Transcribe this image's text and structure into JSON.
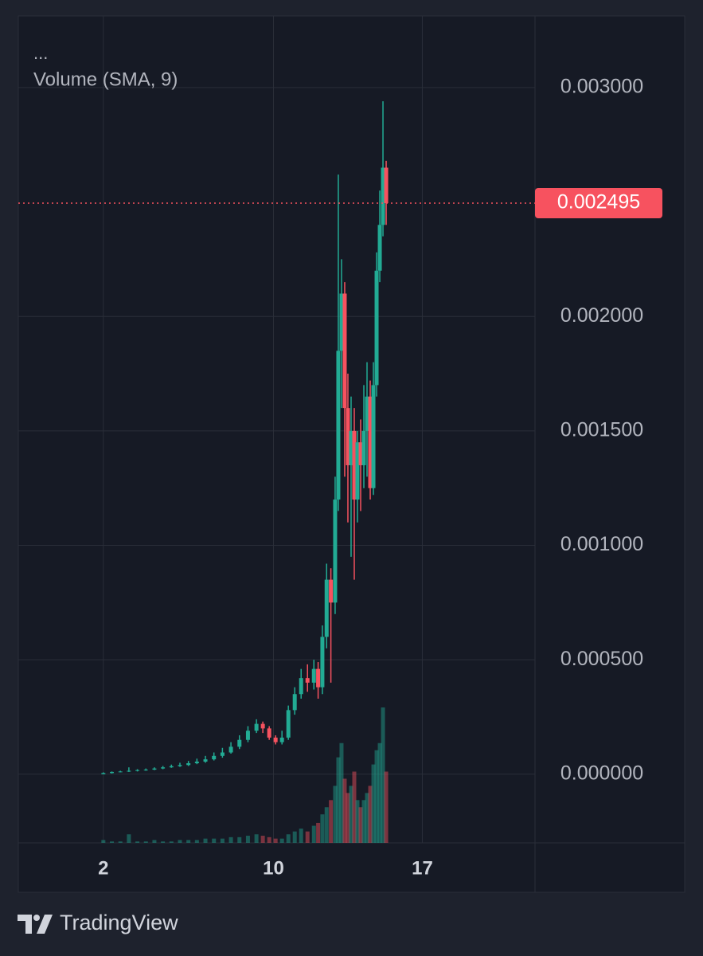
{
  "chart_data": {
    "type": "candlestick",
    "menu": "...",
    "indicator": "Volume (SMA, 9)",
    "up_color": "#22ab94",
    "down_color": "#f7525f",
    "grid": true,
    "xlim": [
      -2,
      22.3
    ],
    "xticks": [
      2,
      10,
      17
    ],
    "ylim": [
      -0.0003,
      0.003313
    ],
    "yticks": [
      {
        "value": 0,
        "label": "0.000000"
      },
      {
        "value": 0.0005,
        "label": "0.000500"
      },
      {
        "value": 0.001,
        "label": "0.001000"
      },
      {
        "value": 0.0015,
        "label": "0.001500"
      },
      {
        "value": 0.002,
        "label": "0.002000"
      },
      {
        "value": 0.003,
        "label": "0.003000"
      }
    ],
    "x": [
      2.0,
      2.4,
      2.8,
      3.2,
      3.6,
      4.0,
      4.4,
      4.8,
      5.2,
      5.6,
      6.0,
      6.4,
      6.8,
      7.2,
      7.6,
      8.0,
      8.4,
      8.8,
      9.2,
      9.5,
      9.8,
      10.1,
      10.4,
      10.7,
      11.0,
      11.3,
      11.6,
      11.9,
      12.1,
      12.3,
      12.5,
      12.7,
      12.9,
      13.05,
      13.2,
      13.35,
      13.5,
      13.65,
      13.8,
      13.95,
      14.1,
      14.25,
      14.4,
      14.55,
      14.7,
      14.85,
      15.0,
      15.15,
      15.3
    ],
    "open": [
      0,
      5e-06,
      1e-05,
      1.2e-05,
      1.5e-05,
      1.8e-05,
      2e-05,
      2.5e-05,
      3e-05,
      3.5e-05,
      4e-05,
      4.8e-05,
      5.5e-05,
      6.5e-05,
      8e-05,
      9.5e-05,
      0.00012,
      0.00015,
      0.00019,
      0.00022,
      0.0002,
      0.00016,
      0.00014,
      0.00016,
      0.00028,
      0.00035,
      0.00042,
      0.0004,
      0.00046,
      0.00038,
      0.0006,
      0.00085,
      0.00075,
      0.0012,
      0.00185,
      0.0021,
      0.0016,
      0.00135,
      0.0015,
      0.0012,
      0.00145,
      0.00135,
      0.0015,
      0.00165,
      0.00125,
      0.0017,
      0.0022,
      0.0024,
      0.00265
    ],
    "high": [
      8e-06,
      1.2e-05,
      1.5e-05,
      3e-05,
      2.2e-05,
      2.5e-05,
      3e-05,
      3.6e-05,
      4.2e-05,
      5e-05,
      5.8e-05,
      6.8e-05,
      8e-05,
      9.5e-05,
      0.000115,
      0.00014,
      0.00017,
      0.00021,
      0.00024,
      0.00023,
      0.00021,
      0.00017,
      0.00019,
      0.0003,
      0.00038,
      0.00046,
      0.00048,
      0.0005,
      0.00049,
      0.00065,
      0.00092,
      0.0009,
      0.0013,
      0.00262,
      0.00225,
      0.00215,
      0.00175,
      0.00165,
      0.0016,
      0.0015,
      0.00155,
      0.0017,
      0.0018,
      0.00172,
      0.0018,
      0.00228,
      0.00255,
      0.00294,
      0.00268
    ],
    "low": [
      0,
      3e-06,
      8e-06,
      1e-05,
      1.2e-05,
      1.5e-05,
      1.8e-05,
      2.2e-05,
      2.8e-05,
      3.2e-05,
      3.6e-05,
      4.4e-05,
      5e-05,
      6e-05,
      7.2e-05,
      9e-05,
      0.00011,
      0.00014,
      0.00018,
      0.00018,
      0.00015,
      0.00013,
      0.00013,
      0.00015,
      0.00026,
      0.00033,
      0.00036,
      0.00037,
      0.00033,
      0.00035,
      0.00055,
      0.0004,
      0.0007,
      0.00115,
      0.0016,
      0.0013,
      0.0011,
      0.00095,
      0.00085,
      0.0011,
      0.00115,
      0.00125,
      0.0013,
      0.0012,
      0.00122,
      0.00165,
      0.00215,
      0.00235,
      0.0024
    ],
    "close": [
      5e-06,
      1e-05,
      1.2e-05,
      1.5e-05,
      1.8e-05,
      2e-05,
      2.5e-05,
      3e-05,
      3.5e-05,
      4e-05,
      4.8e-05,
      5.5e-05,
      6.5e-05,
      8e-05,
      9.5e-05,
      0.00012,
      0.00015,
      0.00019,
      0.00022,
      0.0002,
      0.00016,
      0.00014,
      0.00016,
      0.00028,
      0.00035,
      0.00042,
      0.0004,
      0.00046,
      0.00038,
      0.0006,
      0.00085,
      0.00075,
      0.0012,
      0.00185,
      0.0021,
      0.0016,
      0.00135,
      0.0015,
      0.0012,
      0.00145,
      0.00135,
      0.0015,
      0.00165,
      0.00125,
      0.0017,
      0.0022,
      0.0024,
      0.00265,
      0.002495
    ],
    "volume": [
      2,
      1,
      1,
      6,
      1,
      1,
      2,
      1,
      1,
      2,
      2,
      2,
      3,
      3,
      3,
      4,
      4,
      5,
      6,
      5,
      4,
      3,
      3,
      6,
      8,
      10,
      8,
      12,
      14,
      20,
      25,
      30,
      40,
      60,
      70,
      45,
      35,
      40,
      50,
      30,
      25,
      30,
      35,
      40,
      55,
      65,
      70,
      95,
      50
    ]
  },
  "branding": "TradingView"
}
